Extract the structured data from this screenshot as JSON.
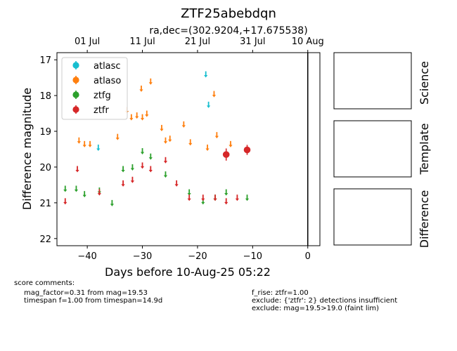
{
  "chart_data": {
    "type": "scatter",
    "title": "ZTF25abebdqn",
    "subtitle": "ra,dec=(302.9204,+17.675538)",
    "xlabel": "Days before 10-Aug-25 05:22",
    "ylabel": "Difference magnitude",
    "xlim": [
      -45.5,
      2.2
    ],
    "ylim": [
      22.2,
      16.8
    ],
    "y_inverted": true,
    "x_ticks": [
      -40,
      -30,
      -20,
      -10,
      0
    ],
    "x_tick_labels": [
      "−40",
      "−30",
      "−20",
      "−10",
      "0"
    ],
    "y_ticks": [
      17,
      18,
      19,
      20,
      21,
      22
    ],
    "y_tick_labels": [
      "17",
      "18",
      "19",
      "20",
      "21",
      "22"
    ],
    "top_axis_ticks": [
      -40,
      -30,
      -20,
      -10,
      0
    ],
    "top_axis_labels": [
      "01 Jul",
      "11 Jul",
      "21 Jul",
      "31 Jul",
      "10 Aug"
    ],
    "vline_x": 0,
    "legend_position": "upper-left",
    "series": [
      {
        "name": "atlasc",
        "color": "#17becf",
        "upper_limits": [
          [
            -38,
            19.45
          ],
          [
            -18.5,
            17.4
          ],
          [
            -18,
            18.25
          ]
        ],
        "detections": []
      },
      {
        "name": "atlaso",
        "color": "#ff7f0e",
        "upper_limits": [
          [
            -41.5,
            19.25
          ],
          [
            -40.5,
            19.35
          ],
          [
            -39.5,
            19.35
          ],
          [
            -34.5,
            19.15
          ],
          [
            -32.8,
            18.4
          ],
          [
            -32,
            18.6
          ],
          [
            -31,
            18.55
          ],
          [
            -30,
            18.6
          ],
          [
            -30.2,
            17.8
          ],
          [
            -29.2,
            18.5
          ],
          [
            -28.5,
            17.6
          ],
          [
            -26.5,
            18.9
          ],
          [
            -25.8,
            19.25
          ],
          [
            -25,
            19.2
          ],
          [
            -22.5,
            18.8
          ],
          [
            -21.3,
            19.3
          ],
          [
            -18.2,
            19.45
          ],
          [
            -17,
            17.95
          ],
          [
            -16.5,
            19.1
          ],
          [
            -14,
            19.35
          ]
        ],
        "detections": []
      },
      {
        "name": "ztfg",
        "color": "#2ca02c",
        "upper_limits": [
          [
            -44,
            20.6
          ],
          [
            -42,
            20.6
          ],
          [
            -40.5,
            20.75
          ],
          [
            -37.8,
            20.65
          ],
          [
            -35.5,
            21.0
          ],
          [
            -33.5,
            20.05
          ],
          [
            -31.8,
            20.0
          ],
          [
            -30,
            19.55
          ],
          [
            -28.5,
            19.7
          ],
          [
            -25.8,
            20.2
          ],
          [
            -21.5,
            20.7
          ],
          [
            -19,
            20.95
          ],
          [
            -16.8,
            20.85
          ],
          [
            -14.8,
            20.7
          ],
          [
            -11,
            20.85
          ]
        ],
        "detections": []
      },
      {
        "name": "ztfr",
        "color": "#d62728",
        "upper_limits": [
          [
            -44,
            20.95
          ],
          [
            -41.8,
            20.05
          ],
          [
            -37.8,
            20.7
          ],
          [
            -33.5,
            20.45
          ],
          [
            -31.8,
            20.35
          ],
          [
            -30,
            19.95
          ],
          [
            -28.5,
            20.05
          ],
          [
            -25.8,
            19.8
          ],
          [
            -23.8,
            20.45
          ],
          [
            -21.5,
            20.85
          ],
          [
            -19,
            20.85
          ],
          [
            -16.8,
            20.85
          ],
          [
            -14.8,
            20.95
          ],
          [
            -12.8,
            20.85
          ]
        ],
        "detections": [
          {
            "x": -14.8,
            "y": 19.65,
            "err": 0.17
          },
          {
            "x": -11,
            "y": 19.52,
            "err": 0.14
          }
        ]
      }
    ]
  },
  "panels": [
    {
      "label": "Science"
    },
    {
      "label": "Template"
    },
    {
      "label": "Difference"
    }
  ],
  "score_comments": {
    "heading": "score comments:",
    "left": [
      "mag_factor=0.31 from mag=19.53",
      "timespan f=1.00 from timespan=14.9d"
    ],
    "right": [
      "f_rise: ztfr=1.00",
      "exclude: {'ztfr': 2} detections insufficient",
      "exclude: mag=19.5>19.0 (faint lim)"
    ]
  }
}
